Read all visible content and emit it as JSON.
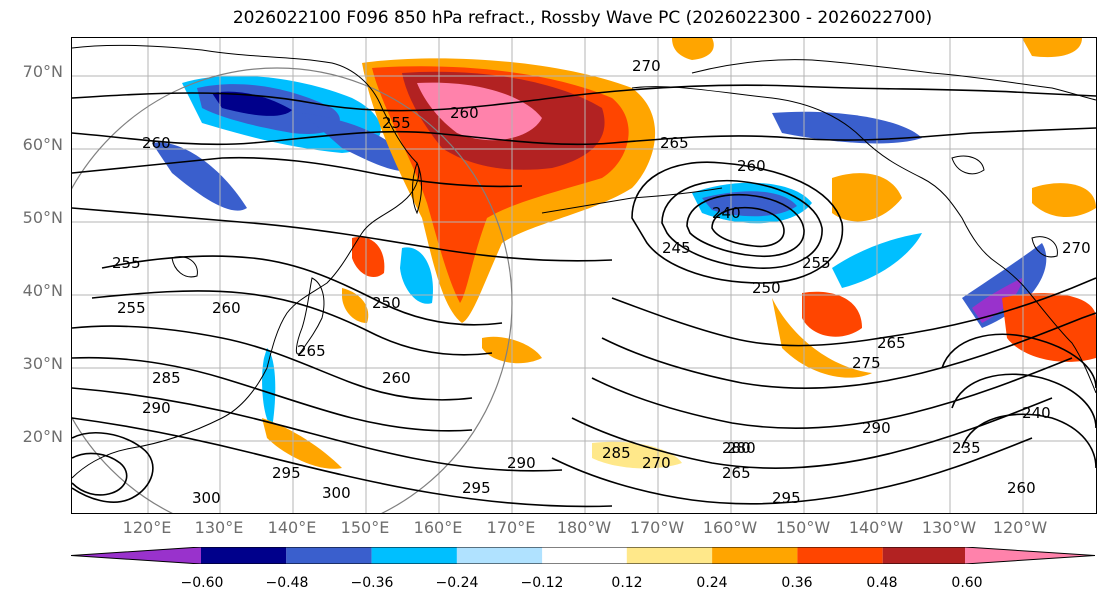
{
  "title": "2026022100 F096 850 hPa refract., Rossby Wave PC (2026022300 - 2026022700)",
  "lat_labels": [
    "70°N",
    "60°N",
    "50°N",
    "40°N",
    "30°N",
    "20°N"
  ],
  "lon_labels": [
    "120°E",
    "130°E",
    "140°E",
    "150°E",
    "160°E",
    "170°E",
    "180°W",
    "170°W",
    "160°W",
    "150°W",
    "140°W",
    "130°W",
    "120°W"
  ],
  "colorbar": {
    "colors": [
      "#9932cc",
      "#00008b",
      "#3a5fcd",
      "#00bfff",
      "#b0e2ff",
      "#ffffff",
      "#ffe88a",
      "#ffa500",
      "#ff4500",
      "#b22222",
      "#ff82ab"
    ],
    "tick_labels": [
      "−0.60",
      "−0.48",
      "−0.36",
      "−0.24",
      "−0.12",
      "0.12",
      "0.24",
      "0.36",
      "0.48",
      "0.60"
    ]
  },
  "contour_labels": [
    "270",
    "260",
    "255",
    "265",
    "260",
    "240",
    "245",
    "250",
    "255",
    "260",
    "265",
    "270",
    "275",
    "280",
    "285",
    "290",
    "295",
    "300",
    "235",
    "240",
    "255",
    "255",
    "260",
    "250",
    "265",
    "260",
    "285",
    "290",
    "295",
    "300",
    "290",
    "295",
    "280",
    "265",
    "260",
    "270"
  ],
  "colors": {
    "frame": "#000000",
    "grid": "#b4b4b4",
    "coast": "#000000",
    "label": "#6e6e6e"
  }
}
